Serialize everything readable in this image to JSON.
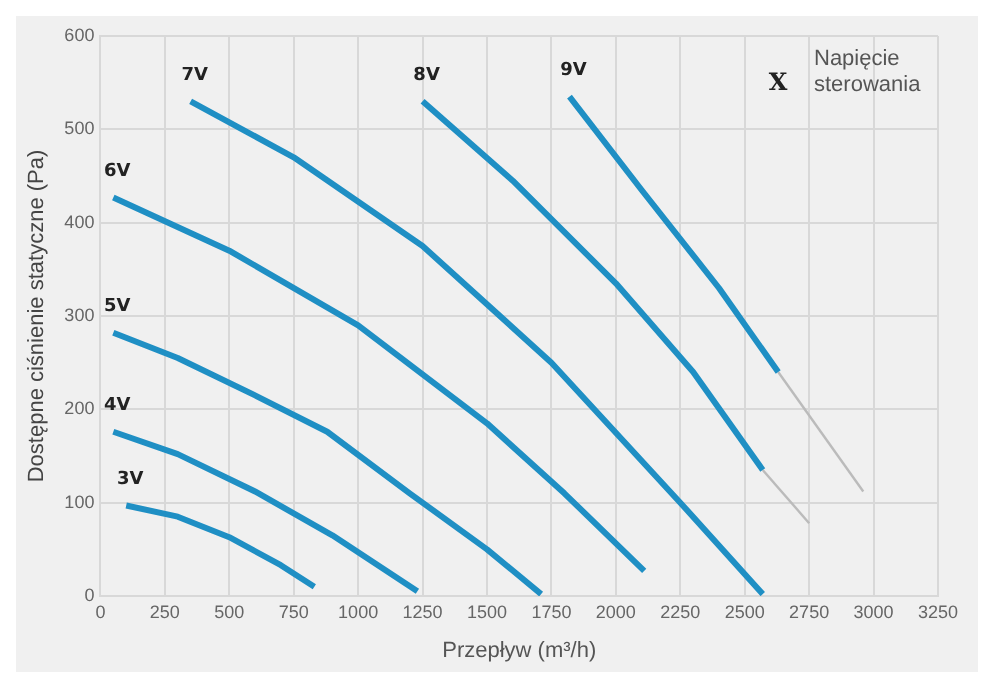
{
  "chart_data": {
    "type": "line",
    "xlabel": "Przepływ (m³/h)",
    "ylabel": "Dostępne ciśnienie statyczne (Pa)",
    "xlim": [
      0,
      3250
    ],
    "xticks": [
      0,
      250,
      500,
      750,
      1000,
      1250,
      1500,
      1750,
      2000,
      2250,
      2500,
      2750,
      3000,
      3250
    ],
    "ylim": [
      0,
      600
    ],
    "yticks": [
      0,
      100,
      200,
      300,
      400,
      500,
      600
    ],
    "grid": true,
    "legend": false,
    "marker": "none",
    "line_style": "solid",
    "series": [
      {
        "name": "3V",
        "color": "#1f8fc4",
        "x": [
          100,
          300,
          500,
          700,
          830
        ],
        "values": [
          97,
          85,
          63,
          33,
          10
        ]
      },
      {
        "name": "4V",
        "color": "#1f8fc4",
        "x": [
          50,
          300,
          600,
          900,
          1230
        ],
        "values": [
          176,
          152,
          112,
          65,
          5
        ]
      },
      {
        "name": "5V",
        "color": "#1f8fc4",
        "x": [
          50,
          300,
          600,
          880,
          1200,
          1500,
          1710
        ],
        "values": [
          282,
          255,
          215,
          176,
          110,
          50,
          2
        ]
      },
      {
        "name": "6V",
        "color": "#1f8fc4",
        "x": [
          50,
          500,
          1000,
          1500,
          1800,
          2110
        ],
        "values": [
          427,
          370,
          290,
          185,
          110,
          27
        ]
      },
      {
        "name": "7V",
        "color": "#1f8fc4",
        "x": [
          350,
          750,
          1250,
          1750,
          2250,
          2570
        ],
        "values": [
          530,
          470,
          375,
          250,
          100,
          2
        ]
      },
      {
        "name": "8V",
        "color": "#1f8fc4",
        "x": [
          1250,
          1600,
          2000,
          2300,
          2570
        ],
        "values": [
          530,
          445,
          335,
          240,
          135
        ]
      },
      {
        "name": "9V",
        "color": "#1f8fc4",
        "x": [
          1820,
          2100,
          2400,
          2630
        ],
        "values": [
          535,
          435,
          330,
          240
        ]
      },
      {
        "color": "#bbbbbb",
        "x": [
          2570,
          2750
        ],
        "values": [
          135,
          78
        ]
      },
      {
        "color": "#bbbbbb",
        "x": [
          2630,
          2960
        ],
        "values": [
          240,
          112
        ]
      }
    ],
    "annotations": [
      "X",
      "Napięcie",
      "sterowania"
    ]
  }
}
